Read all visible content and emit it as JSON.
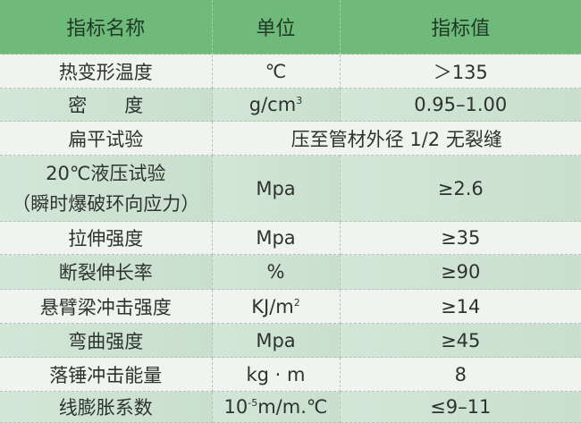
{
  "colors": {
    "header": "#6fb97b",
    "row_light": "#f1f3f0",
    "row_green": "#cfe3d3"
  },
  "headers": [
    "指标名称",
    "单位",
    "指标值"
  ],
  "rows": [
    {
      "name": "热变形温度",
      "unit": "℃",
      "value": "＞135"
    },
    {
      "name": "密　　度",
      "unit": "g/cm",
      "unit_sup": "3",
      "value": "0.95–1.00"
    },
    {
      "name": "扁平试验",
      "merged": "压至管材外径 1/2 无裂缝"
    },
    {
      "name": "20℃液压试验",
      "name2": "（瞬时爆破环向应力）",
      "unit": "Mpa",
      "value": "≥2.6"
    },
    {
      "name": "拉伸强度",
      "unit": "Mpa",
      "value": "≥35"
    },
    {
      "name": "断裂伸长率",
      "unit": "%",
      "value": "≥90"
    },
    {
      "name": "悬臂梁冲击强度",
      "unit": "KJ/m",
      "unit_sup": "2",
      "value": "≥14"
    },
    {
      "name": "弯曲强度",
      "unit": "Mpa",
      "value": "≥45"
    },
    {
      "name": "落锤冲击能量",
      "unit": "kg · m",
      "value": "8"
    },
    {
      "name": "线膨胀系数",
      "unit_pre": "10",
      "unit_sup": "-5",
      "unit": "m/m.℃",
      "value": "≤9–11"
    }
  ]
}
